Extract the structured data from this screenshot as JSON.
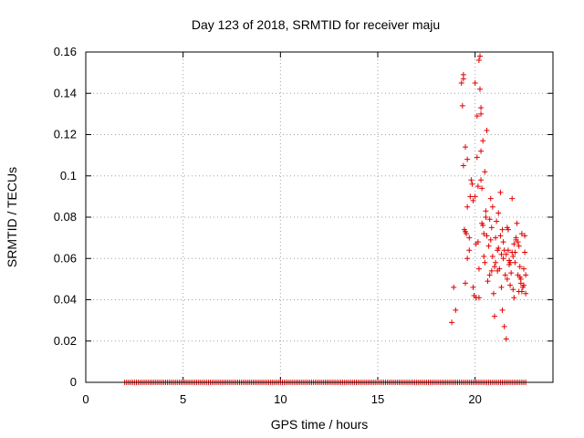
{
  "chart_data": {
    "type": "scatter",
    "title": "Day 123 of 2018, SRMTID for receiver maju",
    "xlabel": "GPS time / hours",
    "ylabel": "SRMTID / TECUs",
    "xlim": [
      0,
      24
    ],
    "ylim": [
      0,
      0.16
    ],
    "xticks": [
      0,
      5,
      10,
      15,
      20
    ],
    "xtick_labels": [
      "0",
      "5",
      "10",
      "15",
      "20"
    ],
    "yticks": [
      0,
      0.02,
      0.04,
      0.06,
      0.08,
      0.1,
      0.12,
      0.14,
      0.16
    ],
    "ytick_labels": [
      "0",
      "0.02",
      "0.04",
      "0.06",
      "0.08",
      "0.1",
      "0.12",
      "0.14",
      "0.16"
    ],
    "grid": true,
    "marker": "+",
    "color": "#e00000",
    "series": [
      {
        "name": "SRMTID",
        "x": [
          2.0,
          2.1,
          2.2,
          2.3,
          2.4,
          2.5,
          2.6,
          2.7,
          2.8,
          2.9,
          3.0,
          3.1,
          3.2,
          3.3,
          3.4,
          3.5,
          3.6,
          3.7,
          3.8,
          3.9,
          4.0,
          4.1,
          4.2,
          4.3,
          4.4,
          4.5,
          4.6,
          4.7,
          4.8,
          4.9,
          5.0,
          5.1,
          5.2,
          5.3,
          5.4,
          5.5,
          5.6,
          5.7,
          5.8,
          5.9,
          6.0,
          6.1,
          6.2,
          6.3,
          6.4,
          6.5,
          6.6,
          6.7,
          6.8,
          6.9,
          7.0,
          7.1,
          7.2,
          7.3,
          7.4,
          7.5,
          7.6,
          7.7,
          7.8,
          7.9,
          8.0,
          8.1,
          8.2,
          8.3,
          8.4,
          8.5,
          8.6,
          8.7,
          8.8,
          8.9,
          9.0,
          9.1,
          9.2,
          9.3,
          9.4,
          9.5,
          9.6,
          9.7,
          9.8,
          9.9,
          10.0,
          10.1,
          10.2,
          10.3,
          10.4,
          10.5,
          10.6,
          10.7,
          10.8,
          10.9,
          11.0,
          11.1,
          11.2,
          11.3,
          11.4,
          11.5,
          11.6,
          11.7,
          11.8,
          11.9,
          12.0,
          12.1,
          12.2,
          12.3,
          12.4,
          12.5,
          12.6,
          12.7,
          12.8,
          12.9,
          13.0,
          13.1,
          13.2,
          13.3,
          13.4,
          13.5,
          13.6,
          13.7,
          13.8,
          13.9,
          14.0,
          14.1,
          14.2,
          14.3,
          14.4,
          14.5,
          14.6,
          14.7,
          14.8,
          14.9,
          15.0,
          15.1,
          15.2,
          15.3,
          15.4,
          15.5,
          15.6,
          15.7,
          15.8,
          15.9,
          16.0,
          16.1,
          16.2,
          16.3,
          16.4,
          16.5,
          16.6,
          16.7,
          16.8,
          16.9,
          17.0,
          17.1,
          17.2,
          17.3,
          17.4,
          17.5,
          17.6,
          17.7,
          17.8,
          17.9,
          18.0,
          18.1,
          18.2,
          18.3,
          18.4,
          18.5,
          18.6,
          18.7,
          18.8,
          18.9,
          19.0,
          19.1,
          19.2,
          19.3,
          19.4,
          19.5,
          19.6,
          19.7,
          19.8,
          19.9,
          20.0,
          20.1,
          20.2,
          20.3,
          20.4,
          20.5,
          20.6,
          20.7,
          20.8,
          20.9,
          21.0,
          21.1,
          21.2,
          21.3,
          21.4,
          21.5,
          21.6,
          21.7,
          21.8,
          21.9,
          22.0,
          22.1,
          22.2,
          22.3,
          22.4,
          22.5,
          22.6,
          18.8,
          18.9,
          19.0,
          19.3,
          19.35,
          19.4,
          19.4,
          19.5,
          19.55,
          19.6,
          19.6,
          19.7,
          19.8,
          19.9,
          19.95,
          20.0,
          20.05,
          20.1,
          20.15,
          20.2,
          20.25,
          20.3,
          20.3,
          20.35,
          20.4,
          20.45,
          20.5,
          20.5,
          20.55,
          20.6,
          20.65,
          20.7,
          20.75,
          20.8,
          20.85,
          20.9,
          20.95,
          21.0,
          21.05,
          21.1,
          21.15,
          21.2,
          21.25,
          21.3,
          21.35,
          21.4,
          21.45,
          21.5,
          21.55,
          21.6,
          21.65,
          21.7,
          21.75,
          21.8,
          21.85,
          21.9,
          21.95,
          22.0,
          22.05,
          22.1,
          22.15,
          22.2,
          22.25,
          22.3,
          22.35,
          22.4,
          22.45,
          22.5,
          22.55,
          22.6,
          19.4,
          19.45,
          19.5,
          19.7,
          19.75,
          20.1,
          20.15,
          20.2,
          20.3,
          20.35,
          20.4,
          20.9,
          21.0,
          21.3,
          21.5,
          21.7,
          21.9,
          22.1,
          22.3,
          22.5,
          19.5,
          19.6,
          20.0,
          20.2,
          20.6,
          20.8,
          21.2,
          21.4,
          21.6,
          21.8,
          22.0,
          22.2,
          22.4,
          22.6,
          20.25,
          20.3,
          20.05,
          19.9,
          21.15,
          21.45,
          21.75,
          22.05,
          22.35,
          20.45,
          20.75,
          21.05,
          21.35,
          21.65,
          21.95,
          22.25,
          22.55,
          19.85,
          20.55,
          20.85
        ],
        "y": [
          0,
          0,
          0,
          0,
          0,
          0,
          0,
          0,
          0,
          0,
          0,
          0,
          0,
          0,
          0,
          0,
          0,
          0,
          0,
          0,
          0,
          0,
          0,
          0,
          0,
          0,
          0,
          0,
          0,
          0,
          0,
          0,
          0,
          0,
          0,
          0,
          0,
          0,
          0,
          0,
          0,
          0,
          0,
          0,
          0,
          0,
          0,
          0,
          0,
          0,
          0,
          0,
          0,
          0,
          0,
          0,
          0,
          0,
          0,
          0,
          0,
          0,
          0,
          0,
          0,
          0,
          0,
          0,
          0,
          0,
          0,
          0,
          0,
          0,
          0,
          0,
          0,
          0,
          0,
          0,
          0,
          0,
          0,
          0,
          0,
          0,
          0,
          0,
          0,
          0,
          0,
          0,
          0,
          0,
          0,
          0,
          0,
          0,
          0,
          0,
          0,
          0,
          0,
          0,
          0,
          0,
          0,
          0,
          0,
          0,
          0,
          0,
          0,
          0,
          0,
          0,
          0,
          0,
          0,
          0,
          0,
          0,
          0,
          0,
          0,
          0,
          0,
          0,
          0,
          0,
          0,
          0,
          0,
          0,
          0,
          0,
          0,
          0,
          0,
          0,
          0,
          0,
          0,
          0,
          0,
          0,
          0,
          0,
          0,
          0,
          0,
          0,
          0,
          0,
          0,
          0,
          0,
          0,
          0,
          0,
          0,
          0,
          0,
          0,
          0,
          0,
          0,
          0,
          0,
          0,
          0,
          0,
          0,
          0,
          0,
          0,
          0,
          0,
          0,
          0,
          0,
          0,
          0,
          0,
          0,
          0,
          0,
          0,
          0,
          0,
          0,
          0,
          0,
          0,
          0,
          0,
          0,
          0,
          0,
          0,
          0,
          0,
          0,
          0,
          0,
          0,
          0,
          0.029,
          0.046,
          0.035,
          0.145,
          0.134,
          0.147,
          0.105,
          0.114,
          0.072,
          0.108,
          0.085,
          0.064,
          0.098,
          0.088,
          0.042,
          0.145,
          0.041,
          0.129,
          0.095,
          0.156,
          0.142,
          0.133,
          0.112,
          0.094,
          0.076,
          0.061,
          0.102,
          0.058,
          0.083,
          0.071,
          0.049,
          0.066,
          0.052,
          0.089,
          0.075,
          0.061,
          0.043,
          0.032,
          0.058,
          0.078,
          0.064,
          0.082,
          0.055,
          0.071,
          0.046,
          0.035,
          0.068,
          0.027,
          0.052,
          0.021,
          0.075,
          0.064,
          0.059,
          0.047,
          0.053,
          0.089,
          0.061,
          0.041,
          0.058,
          0.069,
          0.077,
          0.052,
          0.066,
          0.056,
          0.048,
          0.044,
          0.046,
          0.055,
          0.071,
          0.043,
          0.149,
          0.074,
          0.073,
          0.07,
          0.09,
          0.109,
          0.068,
          0.041,
          0.098,
          0.077,
          0.117,
          0.085,
          0.056,
          0.092,
          0.064,
          0.074,
          0.063,
          0.07,
          0.051,
          0.047,
          0.048,
          0.06,
          0.09,
          0.055,
          0.122,
          0.069,
          0.065,
          0.074,
          0.062,
          0.058,
          0.067,
          0.068,
          0.072,
          0.052,
          0.158,
          0.13,
          0.067,
          0.046,
          0.054,
          0.06,
          0.057,
          0.063,
          0.05,
          0.072,
          0.079,
          0.07,
          0.062,
          0.05,
          0.045,
          0.044,
          0.063,
          0.096,
          0.08,
          0.054
        ]
      }
    ]
  }
}
